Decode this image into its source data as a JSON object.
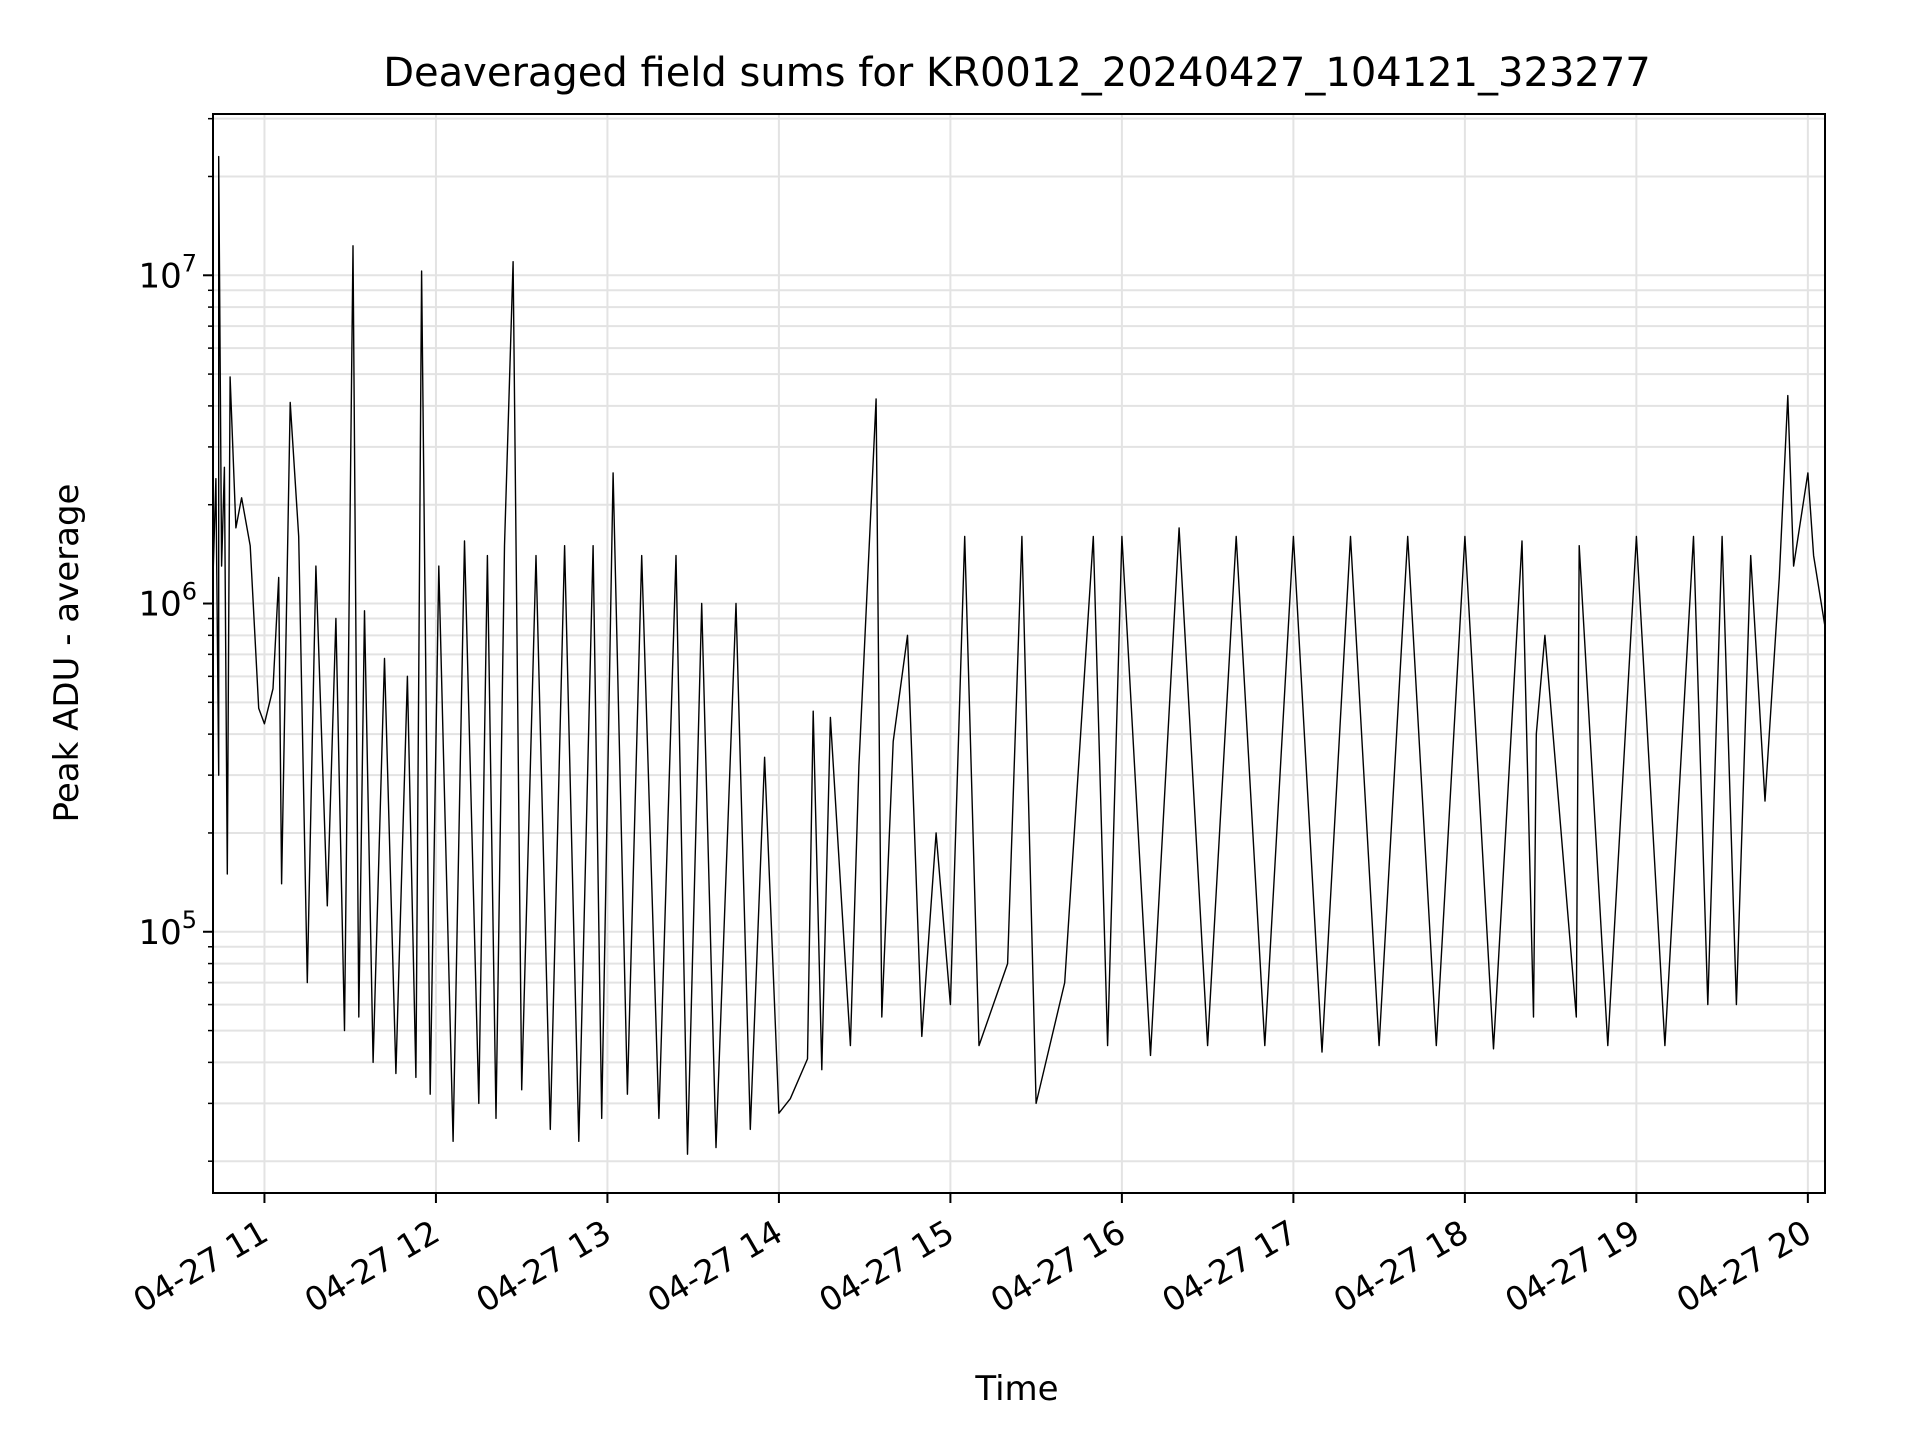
{
  "chart_data": {
    "type": "line",
    "title": "Deaveraged field sums for KR0012_20240427_104121_323277",
    "xlabel": "Time",
    "ylabel": "Peak ADU - average",
    "xlim": [
      "2024-04-27 10:42",
      "2024-04-27 20:06"
    ],
    "ylim": [
      16000,
      31000000
    ],
    "yscale": "log",
    "grid": true,
    "line_color": "#000000",
    "x_ticks": [
      {
        "t": "2024-04-27 11:00",
        "label": "04-27 11"
      },
      {
        "t": "2024-04-27 12:00",
        "label": "04-27 12"
      },
      {
        "t": "2024-04-27 13:00",
        "label": "04-27 13"
      },
      {
        "t": "2024-04-27 14:00",
        "label": "04-27 14"
      },
      {
        "t": "2024-04-27 15:00",
        "label": "04-27 15"
      },
      {
        "t": "2024-04-27 16:00",
        "label": "04-27 16"
      },
      {
        "t": "2024-04-27 17:00",
        "label": "04-27 17"
      },
      {
        "t": "2024-04-27 18:00",
        "label": "04-27 18"
      },
      {
        "t": "2024-04-27 19:00",
        "label": "04-27 19"
      },
      {
        "t": "2024-04-27 20:00",
        "label": "04-27 20"
      }
    ],
    "y_ticks": [
      {
        "value": 100000,
        "base": "10",
        "exp": "5"
      },
      {
        "value": 1000000,
        "base": "10",
        "exp": "6"
      },
      {
        "value": 10000000,
        "base": "10",
        "exp": "7"
      }
    ],
    "series": [
      {
        "points": [
          [
            "2024-04-27 10:42",
            1200000
          ],
          [
            "2024-04-27 10:43",
            2400000
          ],
          [
            "2024-04-27 10:44",
            300000
          ],
          [
            "2024-04-27 10:44",
            23000000
          ],
          [
            "2024-04-27 10:45",
            1300000
          ],
          [
            "2024-04-27 10:46",
            2600000
          ],
          [
            "2024-04-27 10:47",
            150000
          ],
          [
            "2024-04-27 10:48",
            4900000
          ],
          [
            "2024-04-27 10:50",
            1700000
          ],
          [
            "2024-04-27 10:52",
            2100000
          ],
          [
            "2024-04-27 10:55",
            1500000
          ],
          [
            "2024-04-27 10:58",
            480000
          ],
          [
            "2024-04-27 11:00",
            430000
          ],
          [
            "2024-04-27 11:03",
            550000
          ],
          [
            "2024-04-27 11:05",
            1200000
          ],
          [
            "2024-04-27 11:06",
            140000
          ],
          [
            "2024-04-27 11:09",
            4100000
          ],
          [
            "2024-04-27 11:12",
            1600000
          ],
          [
            "2024-04-27 11:15",
            70000
          ],
          [
            "2024-04-27 11:18",
            1300000
          ],
          [
            "2024-04-27 11:22",
            120000
          ],
          [
            "2024-04-27 11:25",
            900000
          ],
          [
            "2024-04-27 11:28",
            50000
          ],
          [
            "2024-04-27 11:31",
            12300000
          ],
          [
            "2024-04-27 11:33",
            55000
          ],
          [
            "2024-04-27 11:35",
            950000
          ],
          [
            "2024-04-27 11:38",
            40000
          ],
          [
            "2024-04-27 11:42",
            680000
          ],
          [
            "2024-04-27 11:46",
            37000
          ],
          [
            "2024-04-27 11:50",
            600000
          ],
          [
            "2024-04-27 11:53",
            36000
          ],
          [
            "2024-04-27 11:55",
            10300000
          ],
          [
            "2024-04-27 11:58",
            32000
          ],
          [
            "2024-04-27 12:01",
            1300000
          ],
          [
            "2024-04-27 12:06",
            23000
          ],
          [
            "2024-04-27 12:10",
            1550000
          ],
          [
            "2024-04-27 12:15",
            30000
          ],
          [
            "2024-04-27 12:18",
            1400000
          ],
          [
            "2024-04-27 12:21",
            27000
          ],
          [
            "2024-04-27 12:24",
            1500000
          ],
          [
            "2024-04-27 12:27",
            11000000
          ],
          [
            "2024-04-27 12:30",
            33000
          ],
          [
            "2024-04-27 12:35",
            1400000
          ],
          [
            "2024-04-27 12:40",
            25000
          ],
          [
            "2024-04-27 12:45",
            1500000
          ],
          [
            "2024-04-27 12:50",
            23000
          ],
          [
            "2024-04-27 12:55",
            1500000
          ],
          [
            "2024-04-27 12:58",
            27000
          ],
          [
            "2024-04-27 13:02",
            2500000
          ],
          [
            "2024-04-27 13:07",
            32000
          ],
          [
            "2024-04-27 13:12",
            1400000
          ],
          [
            "2024-04-27 13:18",
            27000
          ],
          [
            "2024-04-27 13:24",
            1400000
          ],
          [
            "2024-04-27 13:28",
            21000
          ],
          [
            "2024-04-27 13:33",
            1000000
          ],
          [
            "2024-04-27 13:38",
            22000
          ],
          [
            "2024-04-27 13:45",
            1000000
          ],
          [
            "2024-04-27 13:50",
            25000
          ],
          [
            "2024-04-27 13:55",
            340000
          ],
          [
            "2024-04-27 14:00",
            28000
          ],
          [
            "2024-04-27 14:04",
            31000
          ],
          [
            "2024-04-27 14:10",
            41000
          ],
          [
            "2024-04-27 14:12",
            470000
          ],
          [
            "2024-04-27 14:15",
            38000
          ],
          [
            "2024-04-27 14:18",
            450000
          ],
          [
            "2024-04-27 14:22",
            120000
          ],
          [
            "2024-04-27 14:25",
            45000
          ],
          [
            "2024-04-27 14:28",
            320000
          ],
          [
            "2024-04-27 14:34",
            4200000
          ],
          [
            "2024-04-27 14:36",
            55000
          ],
          [
            "2024-04-27 14:40",
            380000
          ],
          [
            "2024-04-27 14:45",
            800000
          ],
          [
            "2024-04-27 14:50",
            48000
          ],
          [
            "2024-04-27 14:55",
            200000
          ],
          [
            "2024-04-27 15:00",
            60000
          ],
          [
            "2024-04-27 15:05",
            1600000
          ],
          [
            "2024-04-27 15:10",
            45000
          ],
          [
            "2024-04-27 15:20",
            80000
          ],
          [
            "2024-04-27 15:25",
            1600000
          ],
          [
            "2024-04-27 15:30",
            30000
          ],
          [
            "2024-04-27 15:40",
            70000
          ],
          [
            "2024-04-27 15:50",
            1600000
          ],
          [
            "2024-04-27 15:55",
            45000
          ],
          [
            "2024-04-27 16:00",
            1600000
          ],
          [
            "2024-04-27 16:10",
            42000
          ],
          [
            "2024-04-27 16:20",
            1700000
          ],
          [
            "2024-04-27 16:30",
            45000
          ],
          [
            "2024-04-27 16:40",
            1600000
          ],
          [
            "2024-04-27 16:50",
            45000
          ],
          [
            "2024-04-27 17:00",
            1600000
          ],
          [
            "2024-04-27 17:10",
            43000
          ],
          [
            "2024-04-27 17:20",
            1600000
          ],
          [
            "2024-04-27 17:30",
            45000
          ],
          [
            "2024-04-27 17:40",
            1600000
          ],
          [
            "2024-04-27 17:50",
            45000
          ],
          [
            "2024-04-27 18:00",
            1600000
          ],
          [
            "2024-04-27 18:10",
            44000
          ],
          [
            "2024-04-27 18:20",
            1550000
          ],
          [
            "2024-04-27 18:24",
            55000
          ],
          [
            "2024-04-27 18:25",
            400000
          ],
          [
            "2024-04-27 18:28",
            800000
          ],
          [
            "2024-04-27 18:39",
            55000
          ],
          [
            "2024-04-27 18:40",
            1500000
          ],
          [
            "2024-04-27 18:50",
            45000
          ],
          [
            "2024-04-27 19:00",
            1600000
          ],
          [
            "2024-04-27 19:10",
            45000
          ],
          [
            "2024-04-27 19:20",
            1600000
          ],
          [
            "2024-04-27 19:25",
            60000
          ],
          [
            "2024-04-27 19:30",
            1600000
          ],
          [
            "2024-04-27 19:35",
            60000
          ],
          [
            "2024-04-27 19:40",
            1400000
          ],
          [
            "2024-04-27 19:45",
            250000
          ],
          [
            "2024-04-27 19:50",
            1200000
          ],
          [
            "2024-04-27 19:53",
            4300000
          ],
          [
            "2024-04-27 19:55",
            1300000
          ],
          [
            "2024-04-27 20:00",
            2500000
          ],
          [
            "2024-04-27 20:02",
            1400000
          ],
          [
            "2024-04-27 20:06",
            850000
          ]
        ]
      }
    ]
  }
}
